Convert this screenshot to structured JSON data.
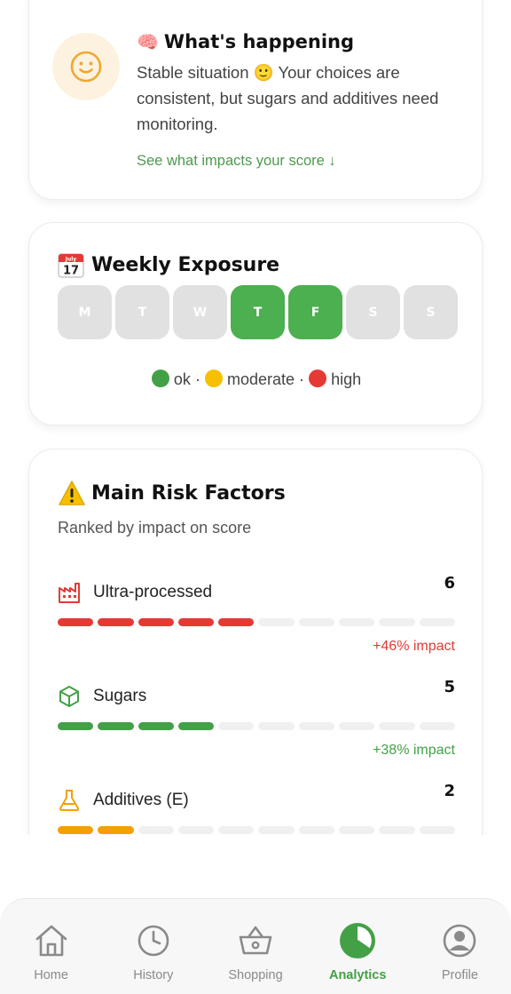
{
  "happening": {
    "title": "What's happening",
    "brain_emoji": "🧠",
    "text": "Stable situation 🙂 Your choices are consistent, but sugars and additives need monitoring.",
    "link": "See what impacts your score ↓",
    "mood_icon": "neutral-smile-icon"
  },
  "weekly": {
    "title": "Weekly Exposure",
    "calendar_month": "July",
    "calendar_day": "17",
    "days": [
      {
        "label": "M",
        "active": false
      },
      {
        "label": "T",
        "active": false
      },
      {
        "label": "W",
        "active": false
      },
      {
        "label": "T",
        "active": true
      },
      {
        "label": "F",
        "active": true
      },
      {
        "label": "S",
        "active": false
      },
      {
        "label": "S",
        "active": false
      }
    ],
    "legend": {
      "ok": "ok",
      "moderate": "moderate",
      "high": "high",
      "sep": "·"
    },
    "colors": {
      "ok": "#43a047",
      "moderate": "#f6c000",
      "high": "#e53935",
      "active_day": "#4caf50",
      "inactive_day": "#e1e1e1"
    }
  },
  "risk": {
    "title": "Main Risk Factors",
    "subtitle": "Ranked by impact on score",
    "factors": [
      {
        "name": "Ultra-processed",
        "count": "6",
        "filled": 5,
        "total": 10,
        "impact": "+46% impact",
        "color": "#e53935",
        "icon": "factory-icon"
      },
      {
        "name": "Sugars",
        "count": "5",
        "filled": 4,
        "total": 10,
        "impact": "+38% impact",
        "color": "#43a047",
        "icon": "cube-icon"
      },
      {
        "name": "Additives (E)",
        "count": "2",
        "filled": 2,
        "total": 10,
        "impact": "",
        "color": "#f5a000",
        "icon": "flask-icon"
      }
    ]
  },
  "nav": {
    "items": [
      {
        "label": "Home",
        "icon": "home-icon",
        "active": false
      },
      {
        "label": "History",
        "icon": "clock-icon",
        "active": false
      },
      {
        "label": "Shopping",
        "icon": "basket-icon",
        "active": false
      },
      {
        "label": "Analytics",
        "icon": "pie-chart-icon",
        "active": true
      },
      {
        "label": "Profile",
        "icon": "user-icon",
        "active": false
      }
    ]
  }
}
